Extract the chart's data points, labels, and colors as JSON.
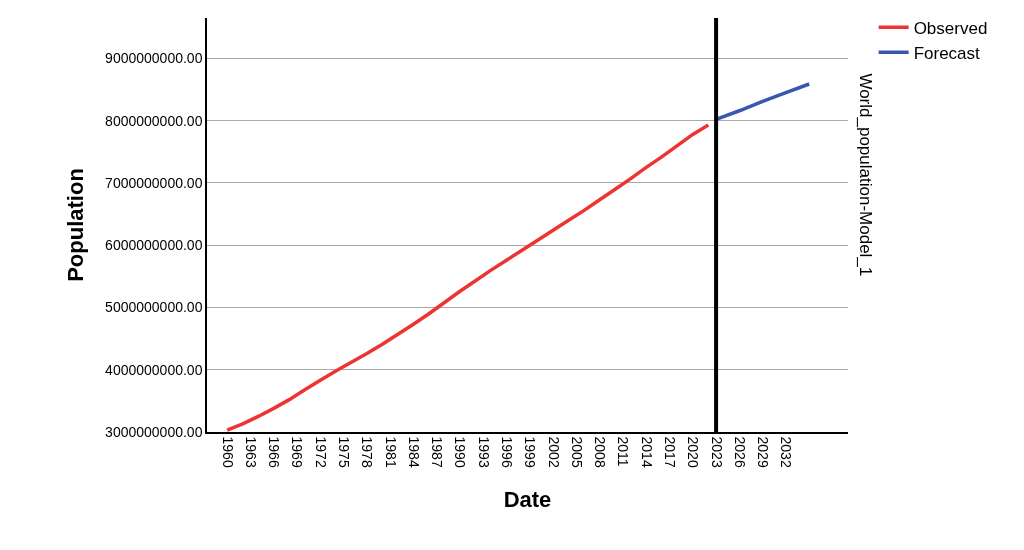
{
  "chart_data": {
    "type": "line",
    "xlabel": "Date",
    "ylabel": "Population",
    "annotations": [
      "World_population-Model_1"
    ],
    "series": [
      {
        "name": "Observed",
        "color": "#ee3333",
        "x": [
          1960,
          1962,
          1964,
          1966,
          1968,
          1970,
          1972,
          1974,
          1976,
          1978,
          1980,
          1982,
          1984,
          1986,
          1988,
          1990,
          1992,
          1994,
          1996,
          1998,
          2000,
          2002,
          2004,
          2006,
          2008,
          2010,
          2012,
          2014,
          2016,
          2018,
          2020,
          2022
        ],
        "values": [
          3030000000,
          3130000000,
          3250000000,
          3380000000,
          3520000000,
          3680000000,
          3830000000,
          3980000000,
          4120000000,
          4260000000,
          4410000000,
          4570000000,
          4730000000,
          4900000000,
          5080000000,
          5260000000,
          5430000000,
          5600000000,
          5760000000,
          5920000000,
          6080000000,
          6240000000,
          6400000000,
          6560000000,
          6730000000,
          6900000000,
          7070000000,
          7250000000,
          7420000000,
          7600000000,
          7780000000,
          7930000000
        ]
      },
      {
        "name": "Forecast",
        "color": "#3a56b0",
        "x": [
          2023,
          2026,
          2029,
          2032,
          2035
        ],
        "values": [
          8020000000,
          8160000000,
          8310000000,
          8450000000,
          8590000000
        ]
      }
    ],
    "xlim": [
      1957.4,
      2040
    ],
    "xticks": [
      1960,
      1963,
      1966,
      1969,
      1972,
      1975,
      1978,
      1981,
      1984,
      1987,
      1990,
      1993,
      1996,
      1999,
      2002,
      2005,
      2008,
      2011,
      2014,
      2017,
      2020,
      2023,
      2026,
      2029,
      2032
    ],
    "ylim": [
      3000000000,
      9650000000
    ],
    "yticks": [
      {
        "value": 3000000000,
        "label": "3000000000.00"
      },
      {
        "value": 4000000000,
        "label": "4000000000.00"
      },
      {
        "value": 5000000000,
        "label": "5000000000.00"
      },
      {
        "value": 6000000000,
        "label": "6000000000.00"
      },
      {
        "value": 7000000000,
        "label": "7000000000.00"
      },
      {
        "value": 8000000000,
        "label": "8000000000.00"
      },
      {
        "value": 9000000000,
        "label": "9000000000.00"
      }
    ],
    "ref_lines": [
      {
        "axis": "x",
        "value": 2023,
        "color": "#000000"
      }
    ],
    "grid": "y",
    "legend": "top right",
    "marker": "none",
    "line_style": "solid"
  }
}
